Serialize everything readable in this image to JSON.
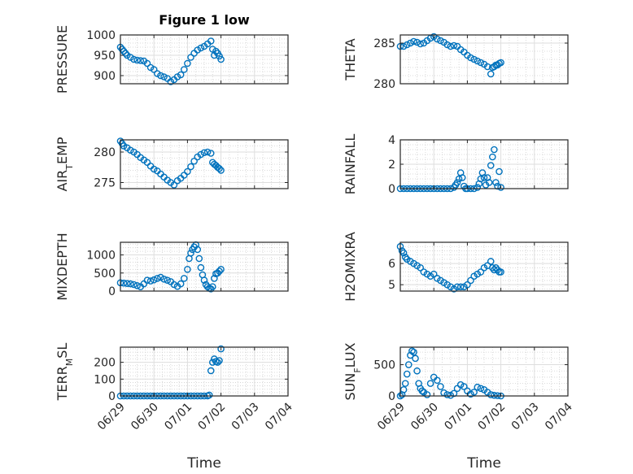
{
  "figure_title": "Figure 1 low",
  "chart_data": [
    {
      "type": "scatter",
      "panel": "left-1",
      "title": "Figure 1 low",
      "ylabel": "PRESSURE",
      "ylim": [
        880,
        1000
      ],
      "yticks": [
        900,
        950,
        1000
      ],
      "ytick_labels": [
        "900",
        "950",
        "1000"
      ],
      "xticks": [
        "06/29",
        "06/30",
        "07/01",
        "07/02",
        "07/03",
        "07/04"
      ],
      "show_xticklabels": false,
      "xlabel": "",
      "grid": true,
      "minor_grid": true,
      "x": [
        0.0,
        0.05,
        0.1,
        0.15,
        0.2,
        0.3,
        0.4,
        0.5,
        0.6,
        0.7,
        0.8,
        0.9,
        1.0,
        1.1,
        1.2,
        1.3,
        1.4,
        1.5,
        1.6,
        1.7,
        1.8,
        1.9,
        2.0,
        2.1,
        2.2,
        2.3,
        2.4,
        2.5,
        2.6,
        2.7,
        2.75,
        2.8,
        2.85,
        2.9,
        2.95,
        3.0
      ],
      "y": [
        970,
        965,
        960,
        955,
        950,
        945,
        940,
        938,
        937,
        936,
        930,
        920,
        915,
        905,
        900,
        897,
        893,
        885,
        890,
        897,
        902,
        915,
        930,
        945,
        955,
        963,
        968,
        972,
        978,
        985,
        965,
        950,
        960,
        955,
        948,
        940
      ]
    },
    {
      "type": "scatter",
      "panel": "right-1",
      "title": "",
      "ylabel": "THETA",
      "ylim": [
        280,
        286
      ],
      "yticks": [
        280,
        285
      ],
      "ytick_labels": [
        "280",
        "285"
      ],
      "xticks": [
        "06/29",
        "06/30",
        "07/01",
        "07/02",
        "07/03",
        "07/04"
      ],
      "show_xticklabels": false,
      "xlabel": "",
      "grid": true,
      "minor_grid": true,
      "x": [
        0.0,
        0.1,
        0.2,
        0.3,
        0.4,
        0.5,
        0.6,
        0.7,
        0.8,
        0.9,
        1.0,
        1.1,
        1.2,
        1.3,
        1.4,
        1.5,
        1.6,
        1.7,
        1.8,
        1.9,
        2.0,
        2.1,
        2.2,
        2.3,
        2.4,
        2.5,
        2.6,
        2.7,
        2.75,
        2.8,
        2.85,
        2.9,
        2.95,
        3.0
      ],
      "y": [
        284.6,
        284.6,
        284.8,
        285.0,
        285.2,
        285.1,
        284.9,
        285.0,
        285.3,
        285.6,
        285.8,
        285.5,
        285.3,
        285.1,
        284.8,
        284.6,
        284.7,
        284.6,
        284.2,
        283.9,
        283.5,
        283.2,
        283.0,
        282.8,
        282.6,
        282.4,
        282.1,
        281.2,
        282.0,
        282.1,
        282.3,
        282.3,
        282.5,
        282.6
      ]
    },
    {
      "type": "scatter",
      "panel": "left-2",
      "title": "",
      "ylabel": "AIR_TEMP",
      "ylim": [
        274,
        282
      ],
      "yticks": [
        275,
        280
      ],
      "ytick_labels": [
        "275",
        "280"
      ],
      "xticks": [
        "06/29",
        "06/30",
        "07/01",
        "07/02",
        "07/03",
        "07/04"
      ],
      "show_xticklabels": false,
      "xlabel": "",
      "grid": true,
      "minor_grid": true,
      "x": [
        0.0,
        0.05,
        0.1,
        0.2,
        0.3,
        0.4,
        0.5,
        0.6,
        0.7,
        0.8,
        0.9,
        1.0,
        1.1,
        1.2,
        1.3,
        1.4,
        1.5,
        1.6,
        1.7,
        1.8,
        1.9,
        2.0,
        2.1,
        2.2,
        2.3,
        2.4,
        2.5,
        2.6,
        2.7,
        2.75,
        2.8,
        2.85,
        2.9,
        2.95,
        3.0
      ],
      "y": [
        281.8,
        281.4,
        281.0,
        280.7,
        280.3,
        280.0,
        279.6,
        279.1,
        278.7,
        278.3,
        277.7,
        277.2,
        276.9,
        276.4,
        275.9,
        275.4,
        275.0,
        274.6,
        275.3,
        275.7,
        276.2,
        276.8,
        277.6,
        278.5,
        279.2,
        279.6,
        279.9,
        280.0,
        279.8,
        278.3,
        278.0,
        277.8,
        277.5,
        277.3,
        277.0
      ]
    },
    {
      "type": "scatter",
      "panel": "right-2",
      "title": "",
      "ylabel": "RAINFALL",
      "ylim": [
        0,
        4
      ],
      "yticks": [
        0,
        2,
        4
      ],
      "ytick_labels": [
        "0",
        "2",
        "4"
      ],
      "xticks": [
        "06/29",
        "06/30",
        "07/01",
        "07/02",
        "07/03",
        "07/04"
      ],
      "show_xticklabels": false,
      "xlabel": "",
      "grid": true,
      "minor_grid": true,
      "x": [
        0.0,
        0.1,
        0.2,
        0.3,
        0.4,
        0.5,
        0.6,
        0.7,
        0.8,
        0.9,
        1.0,
        1.1,
        1.2,
        1.3,
        1.4,
        1.5,
        1.6,
        1.65,
        1.7,
        1.75,
        1.8,
        1.85,
        1.9,
        1.95,
        2.0,
        2.1,
        2.2,
        2.3,
        2.35,
        2.4,
        2.45,
        2.5,
        2.55,
        2.6,
        2.65,
        2.7,
        2.75,
        2.8,
        2.85,
        2.9,
        2.95,
        3.0
      ],
      "y": [
        0,
        0,
        0,
        0,
        0,
        0,
        0,
        0,
        0,
        0,
        0,
        0,
        0,
        0,
        0,
        0,
        0.1,
        0.3,
        0.5,
        0.8,
        1.3,
        0.9,
        0.2,
        0,
        0,
        0,
        0,
        0.1,
        0.4,
        0.8,
        1.3,
        0.9,
        0.3,
        0.9,
        0.5,
        1.9,
        2.6,
        3.2,
        0.5,
        0.2,
        1.4,
        0.1
      ]
    },
    {
      "type": "scatter",
      "panel": "left-3",
      "title": "",
      "ylabel": "MIXDEPTH",
      "ylim": [
        0,
        1350
      ],
      "yticks": [
        0,
        500,
        1000
      ],
      "ytick_labels": [
        "0",
        "500",
        "1000"
      ],
      "xticks": [
        "06/29",
        "06/30",
        "07/01",
        "07/02",
        "07/03",
        "07/04"
      ],
      "show_xticklabels": false,
      "xlabel": "",
      "grid": true,
      "minor_grid": true,
      "x": [
        0.0,
        0.1,
        0.2,
        0.3,
        0.4,
        0.5,
        0.6,
        0.7,
        0.8,
        0.9,
        1.0,
        1.1,
        1.2,
        1.3,
        1.4,
        1.5,
        1.6,
        1.7,
        1.8,
        1.9,
        2.0,
        2.05,
        2.1,
        2.15,
        2.2,
        2.25,
        2.3,
        2.35,
        2.4,
        2.45,
        2.5,
        2.55,
        2.6,
        2.65,
        2.7,
        2.75,
        2.8,
        2.85,
        2.9,
        2.95,
        3.0
      ],
      "y": [
        230,
        220,
        210,
        200,
        180,
        150,
        120,
        200,
        300,
        280,
        310,
        350,
        380,
        330,
        300,
        260,
        180,
        130,
        200,
        350,
        600,
        900,
        1050,
        1150,
        1220,
        1280,
        1150,
        900,
        650,
        450,
        300,
        180,
        120,
        80,
        60,
        120,
        350,
        480,
        500,
        550,
        600
      ]
    },
    {
      "type": "scatter",
      "panel": "right-3",
      "title": "",
      "ylabel": "H2OMIXRA",
      "ylim": [
        4.7,
        7
      ],
      "yticks": [
        5,
        6
      ],
      "ytick_labels": [
        "5",
        "6"
      ],
      "xticks": [
        "06/29",
        "06/30",
        "07/01",
        "07/02",
        "07/03",
        "07/04"
      ],
      "show_xticklabels": false,
      "xlabel": "",
      "grid": true,
      "minor_grid": true,
      "x": [
        0.0,
        0.05,
        0.1,
        0.15,
        0.2,
        0.3,
        0.4,
        0.5,
        0.6,
        0.7,
        0.8,
        0.9,
        1.0,
        1.1,
        1.2,
        1.3,
        1.4,
        1.5,
        1.6,
        1.7,
        1.8,
        1.9,
        2.0,
        2.1,
        2.2,
        2.3,
        2.4,
        2.5,
        2.6,
        2.7,
        2.75,
        2.8,
        2.85,
        2.9,
        2.95,
        3.0
      ],
      "y": [
        6.8,
        6.6,
        6.5,
        6.3,
        6.2,
        6.1,
        6.0,
        5.9,
        5.8,
        5.6,
        5.5,
        5.4,
        5.5,
        5.3,
        5.2,
        5.1,
        5.0,
        4.9,
        4.8,
        4.9,
        4.9,
        4.9,
        5.0,
        5.2,
        5.4,
        5.5,
        5.6,
        5.8,
        5.9,
        6.1,
        5.8,
        5.7,
        5.8,
        5.7,
        5.6,
        5.6
      ]
    },
    {
      "type": "scatter",
      "panel": "left-4",
      "title": "",
      "ylabel": "TERR_MSL",
      "ylim": [
        0,
        290
      ],
      "yticks": [
        0,
        100,
        200
      ],
      "ytick_labels": [
        "0",
        "100",
        "200"
      ],
      "xticks": [
        "06/29",
        "06/30",
        "07/01",
        "07/02",
        "07/03",
        "07/04"
      ],
      "show_xticklabels": true,
      "xlabel": "Time",
      "grid": true,
      "minor_grid": true,
      "x": [
        0.0,
        0.1,
        0.2,
        0.3,
        0.4,
        0.5,
        0.6,
        0.7,
        0.8,
        0.9,
        1.0,
        1.1,
        1.2,
        1.3,
        1.4,
        1.5,
        1.6,
        1.7,
        1.8,
        1.9,
        2.0,
        2.1,
        2.2,
        2.3,
        2.4,
        2.5,
        2.6,
        2.65,
        2.7,
        2.75,
        2.8,
        2.85,
        2.9,
        2.95,
        3.0
      ],
      "y": [
        0,
        0,
        0,
        0,
        0,
        0,
        0,
        0,
        0,
        0,
        0,
        0,
        0,
        0,
        0,
        0,
        0,
        0,
        0,
        0,
        0,
        0,
        0,
        0,
        0,
        0,
        0,
        5,
        150,
        200,
        220,
        205,
        200,
        210,
        280
      ]
    },
    {
      "type": "scatter",
      "panel": "right-4",
      "title": "",
      "ylabel": "SUN_FLUX",
      "ylim": [
        0,
        780
      ],
      "yticks": [
        0,
        500
      ],
      "ytick_labels": [
        "0",
        "500"
      ],
      "xticks": [
        "06/29",
        "06/30",
        "07/01",
        "07/02",
        "07/03",
        "07/04"
      ],
      "show_xticklabels": true,
      "xlabel": "Time",
      "grid": true,
      "minor_grid": true,
      "x": [
        0.0,
        0.05,
        0.1,
        0.15,
        0.2,
        0.25,
        0.3,
        0.35,
        0.4,
        0.45,
        0.5,
        0.55,
        0.6,
        0.65,
        0.7,
        0.8,
        0.9,
        1.0,
        1.1,
        1.2,
        1.3,
        1.4,
        1.5,
        1.6,
        1.7,
        1.8,
        1.9,
        2.0,
        2.1,
        2.2,
        2.3,
        2.4,
        2.5,
        2.6,
        2.7,
        2.8,
        2.9,
        3.0
      ],
      "y": [
        0,
        20,
        100,
        200,
        350,
        500,
        650,
        720,
        700,
        600,
        400,
        200,
        120,
        80,
        60,
        20,
        200,
        300,
        250,
        150,
        50,
        20,
        10,
        40,
        120,
        180,
        150,
        80,
        30,
        60,
        140,
        120,
        100,
        60,
        20,
        10,
        5,
        0
      ]
    }
  ]
}
